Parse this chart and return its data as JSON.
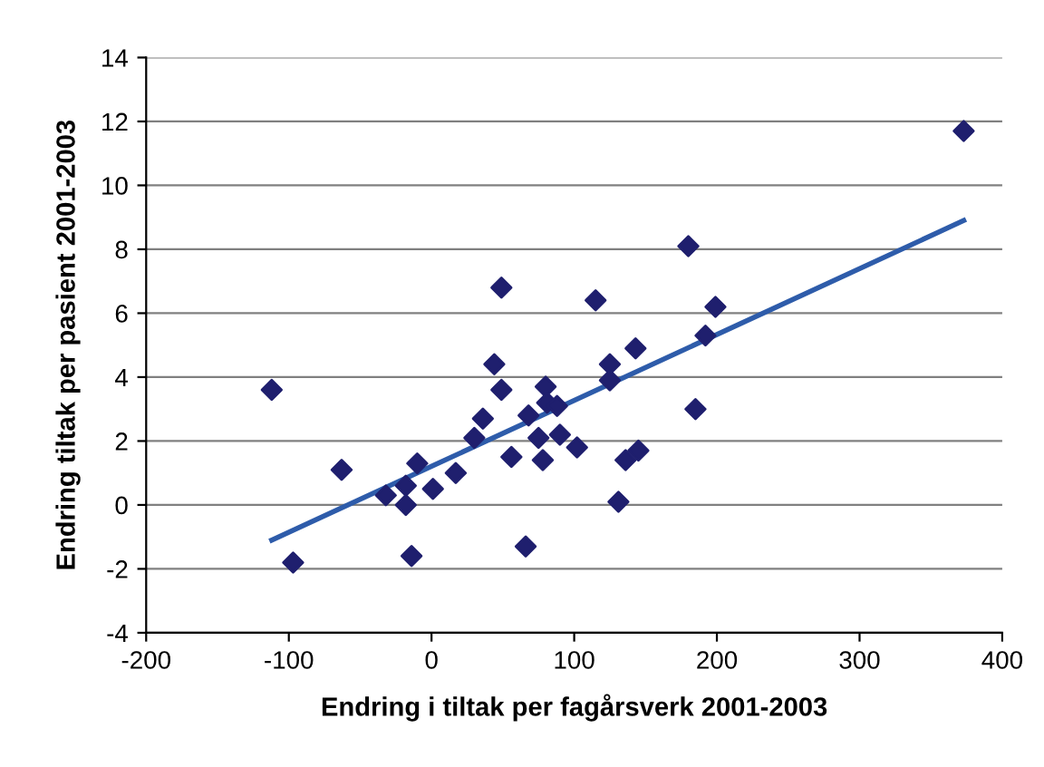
{
  "chart_data": {
    "type": "scatter",
    "xlabel": "Endring i tiltak per fagårsverk 2001-2003",
    "ylabel": "Endring tiltak per pasient 2001-2003",
    "xlim": [
      -200,
      400
    ],
    "xticks": [
      -200,
      -100,
      0,
      100,
      200,
      300,
      400
    ],
    "ylim": [
      -4,
      14
    ],
    "yticks": [
      -4,
      -2,
      0,
      2,
      4,
      6,
      8,
      10,
      12,
      14
    ],
    "grid": "y",
    "marker": "diamond",
    "series": [
      {
        "color": "#1f1f6e",
        "x": [
          373,
          180,
          49,
          115,
          199,
          192,
          143,
          44,
          125,
          125,
          49,
          80,
          81,
          88,
          185,
          36,
          68,
          30,
          75,
          90,
          102,
          56,
          78,
          145,
          136,
          17,
          1,
          131,
          66,
          -112,
          -97,
          -63,
          -32,
          -18,
          -18,
          -10,
          -14
        ],
        "values": [
          11.7,
          8.1,
          6.8,
          6.4,
          6.2,
          5.3,
          4.9,
          4.4,
          4.4,
          3.9,
          3.6,
          3.7,
          3.2,
          3.1,
          3.0,
          2.7,
          2.8,
          2.1,
          2.1,
          2.2,
          1.8,
          1.5,
          1.4,
          1.7,
          1.4,
          1.0,
          0.5,
          0.1,
          -1.3,
          3.6,
          -1.8,
          1.1,
          0.3,
          0.6,
          0.0,
          1.3,
          -1.6
        ]
      },
      {
        "type": "line",
        "color": "#2e5caa",
        "marker": "none",
        "x": [
          -112,
          373
        ],
        "values": [
          -1.1,
          8.9
        ]
      }
    ]
  }
}
